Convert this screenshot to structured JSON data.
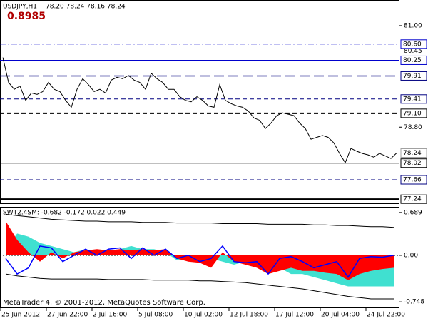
{
  "chart_data": [
    {
      "type": "line",
      "title": "USDJPY,H1",
      "subtitle": "78.20 78.24 78.16 78.24",
      "annotation": "0.8985",
      "color": "#000000",
      "categories": [
        "25 Jun 2012",
        null,
        null,
        null,
        null,
        null,
        null,
        null,
        "27 Jun 22:00",
        null,
        null,
        null,
        null,
        null,
        null,
        null,
        "2 Jul 16:00",
        null,
        null,
        null,
        null,
        null,
        null,
        null,
        "5 Jul 08:00",
        null,
        null,
        null,
        null,
        null,
        null,
        null,
        "10 Jul 02:00",
        null,
        null,
        null,
        null,
        null,
        null,
        null,
        "12 Jul 18:00",
        null,
        null,
        null,
        null,
        null,
        null,
        null,
        "17 Jul 12:00",
        null,
        null,
        null,
        null,
        null,
        null,
        null,
        "20 Jul 04:00",
        null,
        null,
        null,
        null,
        null,
        null,
        null,
        "24 Jul 22:00",
        null,
        null,
        null,
        null,
        null
      ],
      "values": [
        80.31,
        79.77,
        79.62,
        79.69,
        79.38,
        79.54,
        79.51,
        79.57,
        79.77,
        79.62,
        79.57,
        79.38,
        79.23,
        79.62,
        79.85,
        79.72,
        79.57,
        79.62,
        79.54,
        79.82,
        79.88,
        79.85,
        79.92,
        79.82,
        79.77,
        79.62,
        79.97,
        79.85,
        79.77,
        79.62,
        79.62,
        79.46,
        79.38,
        79.35,
        79.46,
        79.38,
        79.26,
        79.23,
        79.72,
        79.38,
        79.31,
        79.26,
        79.23,
        79.15,
        79.0,
        78.95,
        78.77,
        78.89,
        79.05,
        79.11,
        79.08,
        79.05,
        78.89,
        78.77,
        78.54,
        78.58,
        78.62,
        78.58,
        78.46,
        78.23,
        78.03,
        78.34,
        78.28,
        78.23,
        78.2,
        78.15,
        78.23,
        78.18,
        78.12,
        78.24
      ],
      "ylim": [
        77.15,
        81.54
      ],
      "yticks": [
        {
          "value": 81,
          "label": "81.00"
        },
        80.45,
        {
          "value": 78.8,
          "label": "78.80"
        }
      ],
      "levels": [
        {
          "value": 80.6,
          "label": "80.60",
          "color": "#0000cc",
          "dash": "dashdot",
          "width": 1
        },
        {
          "value": 80.25,
          "label": "80.25",
          "color": "#0000cc",
          "dash": "solid",
          "width": 1
        },
        {
          "value": 79.91,
          "label": "79.91",
          "color": "#000080",
          "dash": "longdash",
          "width": 1.5
        },
        {
          "value": 79.41,
          "label": "79.41",
          "color": "#000080",
          "dash": "dash",
          "width": 1
        },
        {
          "value": 79.1,
          "label": "79.10",
          "color": "#000000",
          "dash": "dash",
          "width": 2
        },
        {
          "value": 78.24,
          "label": "78.24",
          "color": "#a0a0a0",
          "dash": "solid",
          "width": 1
        },
        {
          "value": 78.02,
          "label": "78.02",
          "color": "#000000",
          "dash": "solid",
          "width": 1
        },
        {
          "value": 77.66,
          "label": "77.66",
          "color": "#000080",
          "dash": "dash",
          "width": 1
        },
        {
          "value": 77.24,
          "label": "77.24",
          "color": "#000000",
          "dash": "solid",
          "width": 2
        }
      ]
    },
    {
      "type": "area",
      "title": "SWT2.4SM: -0.682 -0.172 0.022 0.449",
      "annotation": "MetaTrader 4, © 2001-2012, MetaQuotes Software Corp.",
      "ylim": [
        -0.838,
        0.768
      ],
      "yticks": [
        0.689,
        {
          "value": 0,
          "label": "0.00"
        },
        -0.748
      ],
      "series": [
        {
          "type": "area",
          "color": "#40e0d0",
          "values": [
            0.1,
            0.35,
            0.3,
            0.2,
            0.15,
            0.1,
            0.05,
            0.1,
            0.05,
            0.05,
            0.1,
            0.15,
            0.1,
            0.1,
            0.05,
            -0.08,
            -0.05,
            -0.08,
            -0.05,
            -0.1,
            -0.15,
            -0.1,
            -0.12,
            -0.15,
            -0.2,
            -0.3,
            -0.3,
            -0.35,
            -0.4,
            -0.45,
            -0.5,
            -0.5,
            -0.5,
            -0.5,
            -0.5
          ]
        },
        {
          "type": "area",
          "color": "#ff0000",
          "values": [
            0.55,
            0.25,
            0.05,
            -0.1,
            0.05,
            -0.05,
            0.05,
            0.08,
            0.1,
            0.08,
            0.1,
            0.08,
            0.1,
            0.08,
            0.1,
            -0.05,
            -0.1,
            -0.12,
            -0.2,
            0.05,
            -0.1,
            -0.15,
            -0.2,
            -0.3,
            -0.25,
            -0.2,
            -0.25,
            -0.25,
            -0.28,
            -0.3,
            -0.4,
            -0.3,
            -0.25,
            -0.22,
            -0.2
          ]
        },
        {
          "type": "line",
          "color": "#0000ff",
          "values": [
            -0.05,
            -0.3,
            -0.2,
            0.15,
            0.12,
            -0.1,
            0.0,
            0.1,
            0.0,
            0.1,
            0.12,
            -0.05,
            0.12,
            0.0,
            0.1,
            -0.05,
            0.0,
            -0.1,
            -0.05,
            0.15,
            -0.1,
            -0.12,
            -0.1,
            -0.3,
            -0.05,
            -0.02,
            -0.1,
            -0.2,
            -0.15,
            -0.1,
            -0.35,
            -0.05,
            -0.02,
            -0.03,
            0.0
          ]
        },
        {
          "type": "line",
          "color": "#000000",
          "values": [
            0.66,
            0.64,
            0.62,
            0.6,
            0.58,
            0.57,
            0.56,
            0.55,
            0.55,
            0.54,
            0.54,
            0.54,
            0.53,
            0.53,
            0.53,
            0.52,
            0.52,
            0.52,
            0.52,
            0.51,
            0.51,
            0.51,
            0.51,
            0.5,
            0.5,
            0.5,
            0.5,
            0.49,
            0.49,
            0.48,
            0.48,
            0.47,
            0.46,
            0.46,
            0.45
          ]
        },
        {
          "type": "line",
          "color": "#000000",
          "values": [
            -0.3,
            -0.33,
            -0.35,
            -0.37,
            -0.38,
            -0.38,
            -0.38,
            -0.38,
            -0.38,
            -0.39,
            -0.39,
            -0.39,
            -0.39,
            -0.4,
            -0.4,
            -0.4,
            -0.4,
            -0.41,
            -0.41,
            -0.42,
            -0.43,
            -0.44,
            -0.46,
            -0.48,
            -0.5,
            -0.52,
            -0.54,
            -0.57,
            -0.6,
            -0.63,
            -0.66,
            -0.68,
            -0.7,
            -0.7,
            -0.7
          ]
        }
      ]
    }
  ]
}
